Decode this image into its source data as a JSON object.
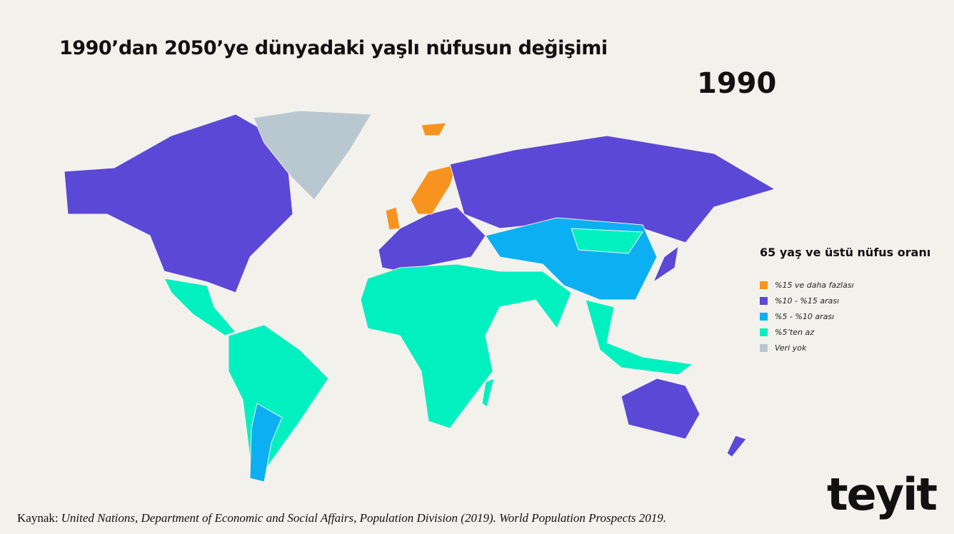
{
  "header": {
    "title": "1990’dan 2050’ye dünyadaki yaşlı nüfusun değişimi",
    "year": "1990"
  },
  "legend": {
    "title": "65 yaş ve üstü nüfus oranı",
    "items": [
      {
        "label": "%15 ve daha fazlası",
        "color": "#f7931e"
      },
      {
        "label": "%10 - %15 arası",
        "color": "#5b48d6"
      },
      {
        "label": "%5 - %10 arası",
        "color": "#0cb0f2"
      },
      {
        "label": "%5’ten az",
        "color": "#00f0c0"
      },
      {
        "label": "Veri yok",
        "color": "#b9c7d1"
      }
    ]
  },
  "source": {
    "prefix": "Kaynak:",
    "text": "United Nations, Department of Economic and Social Affairs, Population Division (2019). World Population Prospects 2019."
  },
  "logo": "teyit"
}
